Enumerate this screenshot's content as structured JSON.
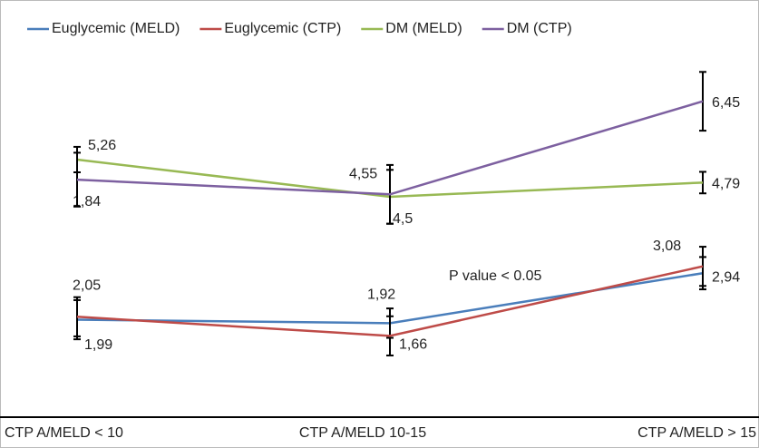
{
  "chart_data": {
    "type": "line",
    "categories": [
      "CTP A/MELD < 10",
      "CTP A/MELD 10-15",
      "CTP A/MELD > 15"
    ],
    "ylim": [
      0,
      8
    ],
    "series": [
      {
        "name": "Euglycemic (MELD)",
        "color": "#4a7ebb",
        "values": [
          1.99,
          1.92,
          2.94
        ],
        "value_labels": [
          "1,99",
          "1,92",
          "2,94"
        ],
        "errors": [
          0.4,
          0.3,
          0.33
        ]
      },
      {
        "name": "Euglycemic (CTP)",
        "color": "#be4b48",
        "values": [
          2.05,
          1.66,
          3.08
        ],
        "value_labels": [
          "2,05",
          "1,66",
          "3,08"
        ],
        "errors": [
          0.4,
          0.4,
          0.4
        ]
      },
      {
        "name": "DM (MELD)",
        "color": "#98b954",
        "values": [
          5.26,
          4.5,
          4.79
        ],
        "value_labels": [
          "5,26",
          "4,5",
          "4,79"
        ],
        "errors": [
          0.26,
          0.55,
          0.22
        ]
      },
      {
        "name": "DM (CTP)",
        "color": "#7d60a0",
        "values": [
          4.85,
          4.55,
          6.45
        ],
        "value_labels": [
          null,
          "4,55",
          "6,45"
        ],
        "errors": [
          0.55,
          0.6,
          0.6
        ]
      }
    ],
    "annotations": [
      "P value < 0.05",
      "1,84"
    ]
  }
}
